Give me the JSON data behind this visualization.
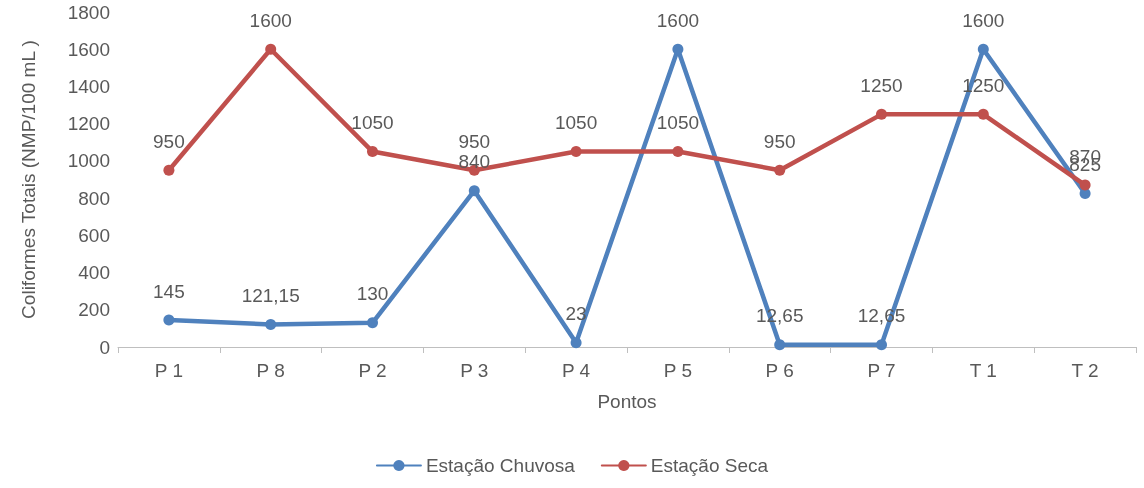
{
  "chart_data": {
    "type": "line",
    "xlabel": "Pontos",
    "ylabel": "Coliformes Totais (NMP/100 mL )",
    "categories": [
      "P 1",
      "P 8",
      "P 2",
      "P 3",
      "P 4",
      "P 5",
      "P 6",
      "P 7",
      "T 1",
      "T 2"
    ],
    "series": [
      {
        "name": "Estação Chuvosa",
        "color": "#4f81bd",
        "values": [
          145,
          121.15,
          130,
          840,
          23,
          1600,
          12.65,
          12.65,
          1600,
          825
        ],
        "value_labels": [
          "145",
          "121,15",
          "130",
          "840",
          "23",
          "1600",
          "12,65",
          "12,65",
          "1600",
          "825"
        ]
      },
      {
        "name": "Estação Seca",
        "color": "#c0504d",
        "values": [
          950,
          1600,
          1050,
          950,
          1050,
          1050,
          950,
          1250,
          1250,
          870
        ],
        "value_labels": [
          "950",
          "1600",
          "1050",
          "950",
          "1050",
          "1050",
          "950",
          "1250",
          "1250",
          "870"
        ]
      }
    ],
    "ylim": [
      0,
      1800
    ],
    "yticks": [
      0,
      200,
      400,
      600,
      800,
      1000,
      1200,
      1400,
      1600,
      1800
    ],
    "grid": false,
    "legend": "bottom",
    "marker": "circle",
    "line_style": "solid"
  }
}
